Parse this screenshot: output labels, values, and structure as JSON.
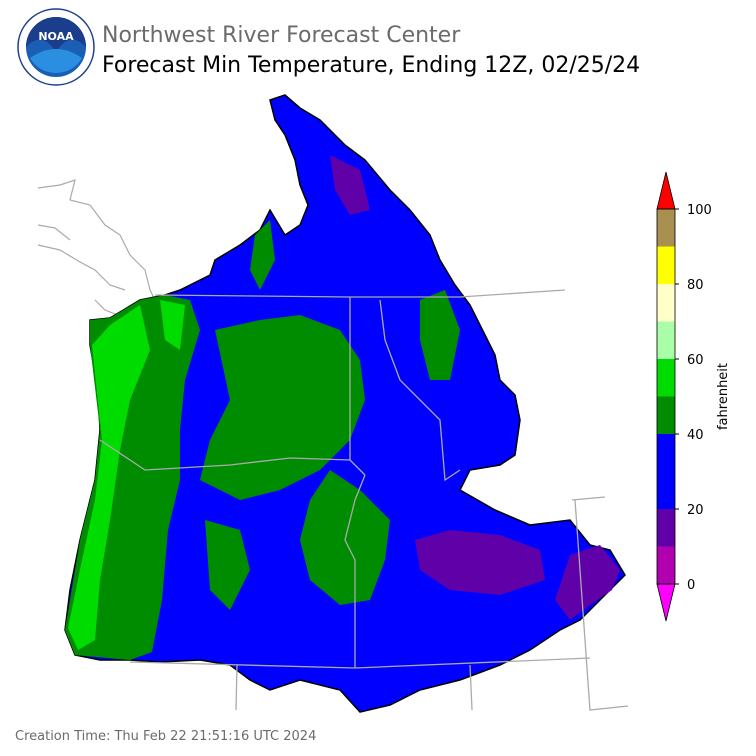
{
  "header": {
    "logo_text": "NOAA",
    "agency": "Northwest River Forecast Center",
    "title": "Forecast Min Temperature, Ending 12Z, 02/25/24"
  },
  "colorbar": {
    "label": "fahrenheit",
    "bounds": [
      0,
      10,
      20,
      30,
      40,
      50,
      60,
      70,
      80,
      90,
      100
    ],
    "colors": [
      "#b000b0",
      "#6000a8",
      "#0000ff",
      "#0000ff",
      "#008c00",
      "#00dc00",
      "#a8ffa8",
      "#ffffc8",
      "#ffff00",
      "#ff9000"
    ],
    "top_color": "#a89050",
    "under_color": "#ff00ff",
    "over_color": "#ff0000",
    "ticks": [
      0,
      20,
      40,
      60,
      80,
      100
    ]
  },
  "footer": {
    "creation_time": "Creation Time: Thu Feb 22 21:51:16 UTC 2024"
  }
}
